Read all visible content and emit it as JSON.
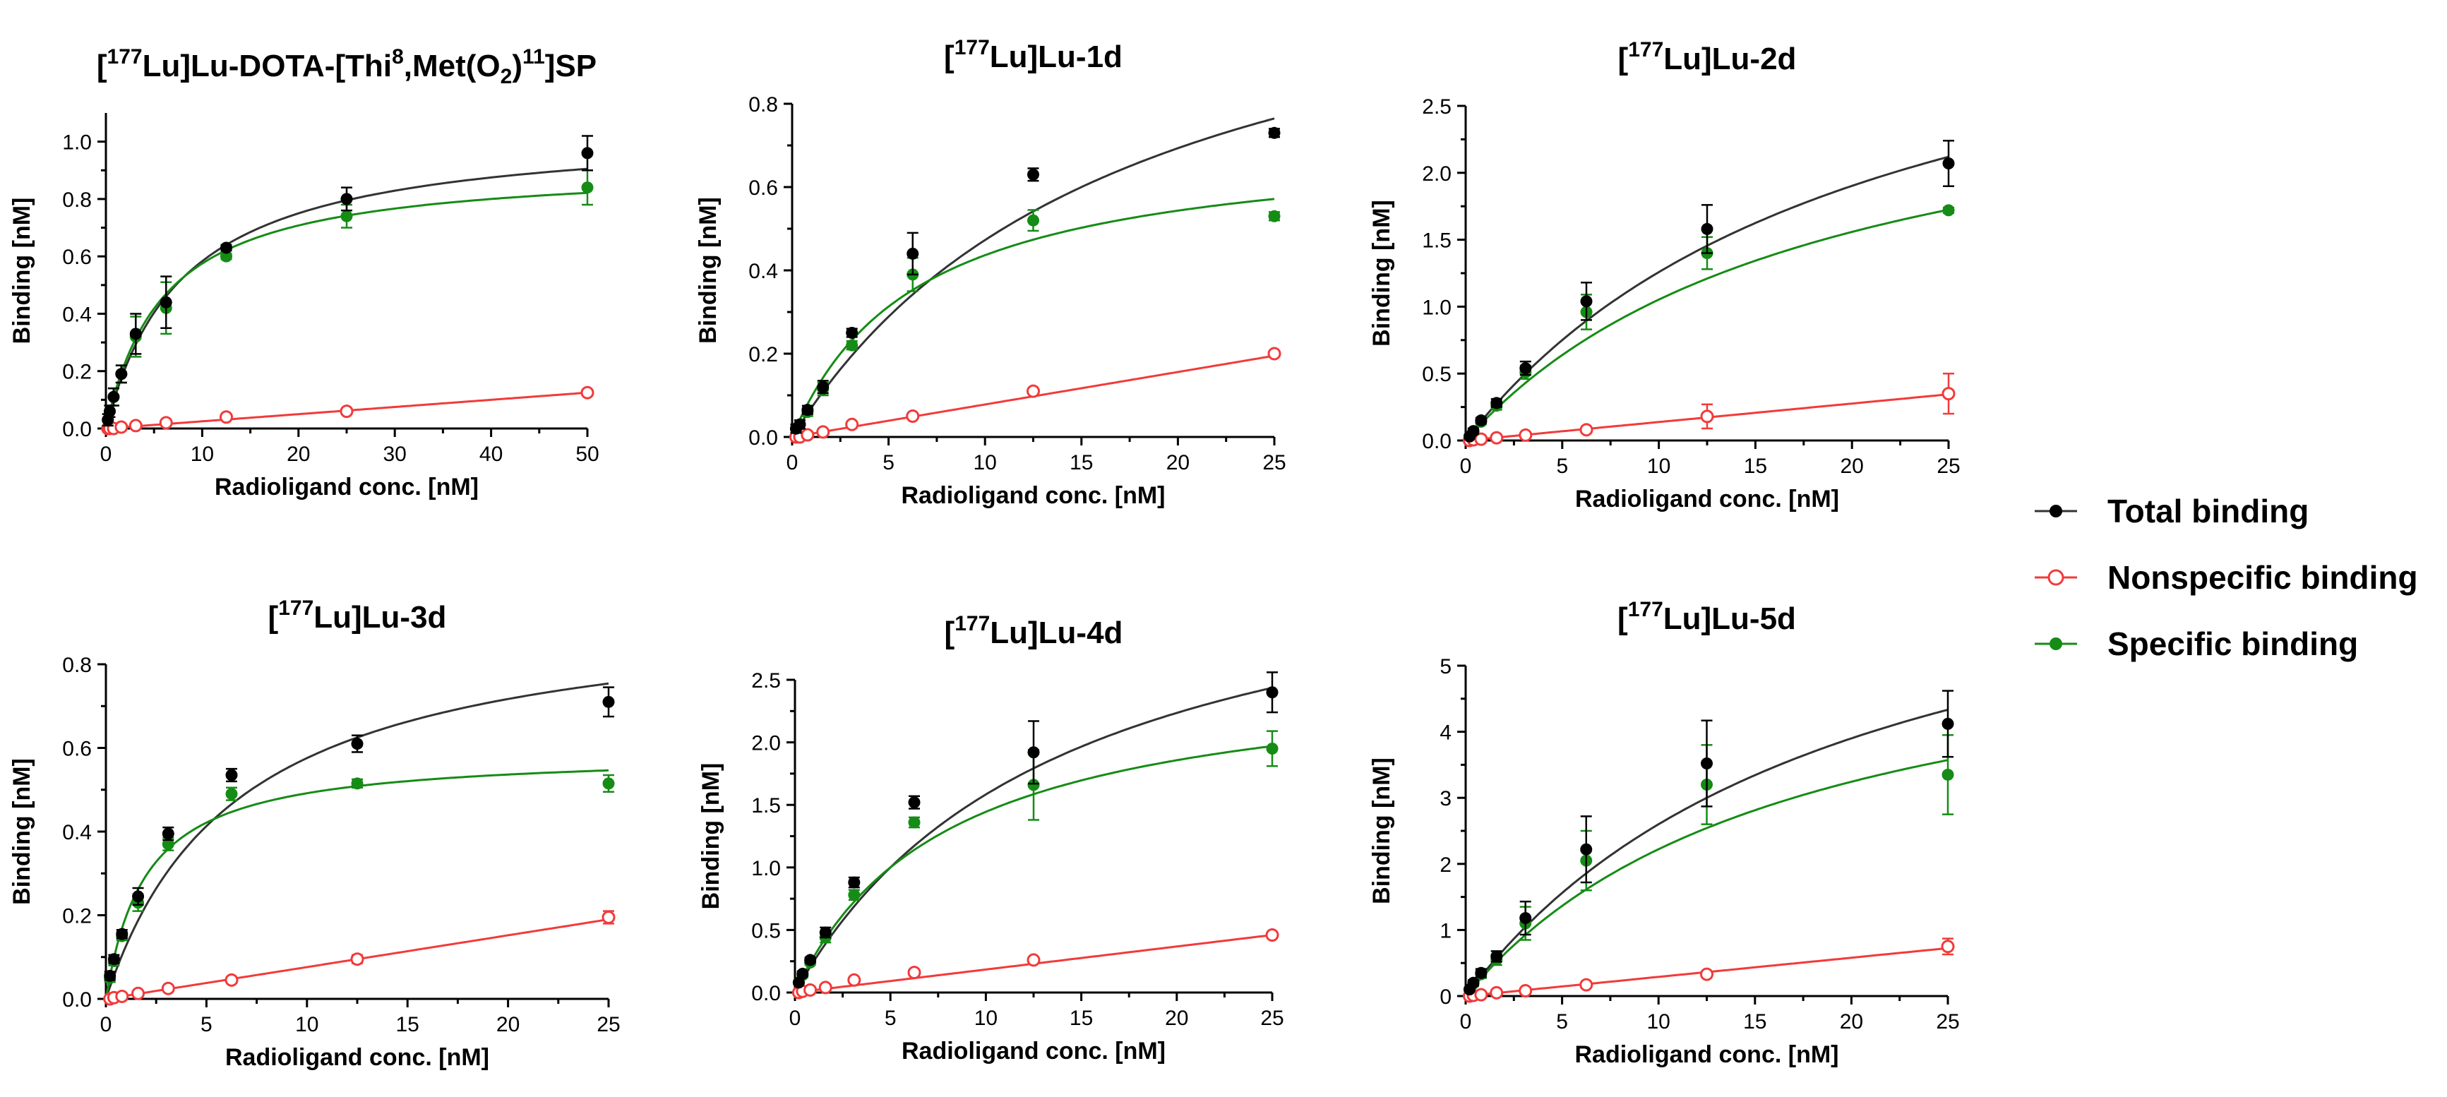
{
  "colors": {
    "total": "#000000",
    "total_fit": "#333333",
    "nonspecific": "#f23a3a",
    "specific": "#158c15"
  },
  "legend": {
    "items": [
      {
        "key": "total",
        "label": "Total binding"
      },
      {
        "key": "nonspecific",
        "label": "Nonspecific binding"
      },
      {
        "key": "specific",
        "label": "Specific binding"
      }
    ]
  },
  "chart_data": [
    {
      "type": "scatter",
      "title": "[177Lu]Lu-DOTA-[Thi8,Met(O2)11]SP",
      "title_parts": [
        {
          "t": "["
        },
        {
          "t": "177",
          "sup": true
        },
        {
          "t": "Lu]Lu-DOTA-[Thi"
        },
        {
          "t": "8",
          "sup": true
        },
        {
          "t": ",Met(O"
        },
        {
          "t": "2",
          "sub": true
        },
        {
          "t": ")"
        },
        {
          "t": "11",
          "sup": true
        },
        {
          "t": "]SP"
        }
      ],
      "xlabel": "Radioligand conc. [nM]",
      "ylabel": "Binding [nM]",
      "xlim": [
        0,
        50
      ],
      "ylim": [
        0,
        1.1
      ],
      "xticks": [
        0,
        10,
        20,
        30,
        40,
        50
      ],
      "yticks": [
        0.0,
        0.2,
        0.4,
        0.6,
        0.8,
        1.0
      ],
      "xtick_labels": [
        "0",
        "10",
        "20",
        "30",
        "40",
        "50"
      ],
      "ytick_labels": [
        "0.0",
        "0.2",
        "0.4",
        "0.6",
        "0.8",
        "1.0"
      ],
      "x": [
        0.2,
        0.4,
        0.8,
        1.6,
        3.1,
        6.25,
        12.5,
        25,
        50
      ],
      "series": [
        {
          "name": "Total binding",
          "key": "total",
          "values": [
            0.03,
            0.06,
            0.11,
            0.19,
            0.33,
            0.44,
            0.63,
            0.8,
            0.96
          ],
          "errors": [
            0.02,
            0.02,
            0.03,
            0.03,
            0.07,
            0.09,
            0.01,
            0.04,
            0.06
          ],
          "fit": {
            "Bmax": 1.05,
            "Kd": 8.0
          }
        },
        {
          "name": "Nonspecific binding",
          "key": "nonspecific",
          "values": [
            0.0,
            0.0,
            0.0,
            0.005,
            0.01,
            0.02,
            0.04,
            0.06,
            0.125
          ],
          "errors": [
            0,
            0,
            0,
            0,
            0,
            0.005,
            0.005,
            0.005,
            0.005
          ],
          "fit": {
            "slope": 0.0025
          }
        },
        {
          "name": "Specific binding",
          "key": "specific",
          "values": [
            0.03,
            0.06,
            0.11,
            0.19,
            0.32,
            0.42,
            0.6,
            0.74,
            0.84
          ],
          "errors": [
            0.02,
            0.02,
            0.03,
            0.03,
            0.07,
            0.09,
            0.01,
            0.04,
            0.06
          ],
          "fit": {
            "Bmax": 0.92,
            "Kd": 6.0
          }
        }
      ]
    },
    {
      "type": "scatter",
      "title": "[177Lu]Lu-1d",
      "title_parts": [
        {
          "t": "["
        },
        {
          "t": "177",
          "sup": true
        },
        {
          "t": "Lu]Lu-1d"
        }
      ],
      "xlabel": "Radioligand conc. [nM]",
      "ylabel": "Binding [nM]",
      "xlim": [
        0,
        25
      ],
      "ylim": [
        0,
        0.8
      ],
      "xticks": [
        0,
        5,
        10,
        15,
        20,
        25
      ],
      "yticks": [
        0.0,
        0.2,
        0.4,
        0.6,
        0.8
      ],
      "xtick_labels": [
        "0",
        "5",
        "10",
        "15",
        "20",
        "25"
      ],
      "ytick_labels": [
        "0.0",
        "0.2",
        "0.4",
        "0.6",
        "0.8"
      ],
      "x": [
        0.2,
        0.4,
        0.8,
        1.6,
        3.1,
        6.25,
        12.5,
        25
      ],
      "series": [
        {
          "name": "Total binding",
          "key": "total",
          "values": [
            0.02,
            0.03,
            0.065,
            0.12,
            0.25,
            0.44,
            0.63,
            0.73
          ],
          "errors": [
            0.01,
            0.01,
            0.01,
            0.015,
            0.01,
            0.05,
            0.015,
            0.01
          ],
          "fit": {
            "Bmax": 1.3,
            "Kd": 17.5
          }
        },
        {
          "name": "Nonspecific binding",
          "key": "nonspecific",
          "values": [
            0.0,
            0.0,
            0.005,
            0.012,
            0.03,
            0.05,
            0.11,
            0.2
          ],
          "errors": [
            0,
            0,
            0,
            0,
            0.003,
            0.003,
            0.005,
            0.005
          ],
          "fit": {
            "slope": 0.0078
          }
        },
        {
          "name": "Specific binding",
          "key": "specific",
          "values": [
            0.02,
            0.03,
            0.06,
            0.115,
            0.22,
            0.39,
            0.52,
            0.53
          ],
          "errors": [
            0.01,
            0.01,
            0.01,
            0.015,
            0.01,
            0.04,
            0.025,
            0.01
          ],
          "fit": {
            "Bmax": 0.72,
            "Kd": 6.5
          }
        }
      ]
    },
    {
      "type": "scatter",
      "title": "[177Lu]Lu-2d",
      "title_parts": [
        {
          "t": "["
        },
        {
          "t": "177",
          "sup": true
        },
        {
          "t": "Lu]Lu-2d"
        }
      ],
      "xlabel": "Radioligand conc. [nM]",
      "ylabel": "Binding [nM]",
      "xlim": [
        0,
        25
      ],
      "ylim": [
        0,
        2.5
      ],
      "xticks": [
        0,
        5,
        10,
        15,
        20,
        25
      ],
      "yticks": [
        0.0,
        0.5,
        1.0,
        1.5,
        2.0,
        2.5
      ],
      "xtick_labels": [
        "0",
        "5",
        "10",
        "15",
        "20",
        "25"
      ],
      "ytick_labels": [
        "0.0",
        "0.5",
        "1.0",
        "1.5",
        "2.0",
        "2.5"
      ],
      "x": [
        0.2,
        0.4,
        0.8,
        1.6,
        3.1,
        6.25,
        12.5,
        25
      ],
      "series": [
        {
          "name": "Total binding",
          "key": "total",
          "values": [
            0.03,
            0.07,
            0.15,
            0.28,
            0.54,
            1.04,
            1.58,
            2.07
          ],
          "errors": [
            0.01,
            0.02,
            0.02,
            0.03,
            0.05,
            0.14,
            0.18,
            0.17
          ],
          "fit": {
            "Bmax": 3.9,
            "Kd": 21.0
          }
        },
        {
          "name": "Nonspecific binding",
          "key": "nonspecific",
          "values": [
            0.0,
            0.005,
            0.01,
            0.02,
            0.04,
            0.08,
            0.18,
            0.35
          ],
          "errors": [
            0,
            0,
            0,
            0,
            0.01,
            0.01,
            0.09,
            0.15
          ],
          "fit": {
            "slope": 0.0138
          }
        },
        {
          "name": "Specific binding",
          "key": "specific",
          "values": [
            0.03,
            0.07,
            0.14,
            0.26,
            0.51,
            0.96,
            1.4,
            1.72
          ],
          "errors": [
            0.01,
            0.02,
            0.02,
            0.03,
            0.05,
            0.13,
            0.12,
            0.02
          ],
          "fit": {
            "Bmax": 3.0,
            "Kd": 18.5
          }
        }
      ]
    },
    {
      "type": "scatter",
      "title": "[177Lu]Lu-3d",
      "title_parts": [
        {
          "t": "["
        },
        {
          "t": "177",
          "sup": true
        },
        {
          "t": "Lu]Lu-3d"
        }
      ],
      "xlabel": "Radioligand conc. [nM]",
      "ylabel": "Binding [nM]",
      "xlim": [
        0,
        25
      ],
      "ylim": [
        0,
        0.8
      ],
      "xticks": [
        0,
        5,
        10,
        15,
        20,
        25
      ],
      "yticks": [
        0.0,
        0.2,
        0.4,
        0.6,
        0.8
      ],
      "xtick_labels": [
        "0",
        "5",
        "10",
        "15",
        "20",
        "25"
      ],
      "ytick_labels": [
        "0.0",
        "0.2",
        "0.4",
        "0.6",
        "0.8"
      ],
      "x": [
        0.2,
        0.4,
        0.8,
        1.6,
        3.1,
        6.25,
        12.5,
        25
      ],
      "series": [
        {
          "name": "Total binding",
          "key": "total",
          "values": [
            0.055,
            0.095,
            0.155,
            0.245,
            0.395,
            0.535,
            0.61,
            0.71
          ],
          "errors": [
            0.01,
            0.01,
            0.01,
            0.02,
            0.015,
            0.015,
            0.02,
            0.035
          ],
          "fit": {
            "Bmax": 0.95,
            "Kd": 6.5
          }
        },
        {
          "name": "Nonspecific binding",
          "key": "nonspecific",
          "values": [
            0.0,
            0.003,
            0.006,
            0.013,
            0.025,
            0.045,
            0.095,
            0.195
          ],
          "errors": [
            0,
            0,
            0,
            0,
            0,
            0.003,
            0.01,
            0.015
          ],
          "fit": {
            "slope": 0.0076
          }
        },
        {
          "name": "Specific binding",
          "key": "specific",
          "values": [
            0.05,
            0.09,
            0.15,
            0.23,
            0.37,
            0.49,
            0.515,
            0.515
          ],
          "errors": [
            0.01,
            0.01,
            0.01,
            0.02,
            0.015,
            0.015,
            0.01,
            0.02
          ],
          "fit": {
            "Bmax": 0.59,
            "Kd": 2.0
          }
        }
      ]
    },
    {
      "type": "scatter",
      "title": "[177Lu]Lu-4d",
      "title_parts": [
        {
          "t": "["
        },
        {
          "t": "177",
          "sup": true
        },
        {
          "t": "Lu]Lu-4d"
        }
      ],
      "xlabel": "Radioligand conc. [nM]",
      "ylabel": "Binding [nM]",
      "xlim": [
        0,
        25
      ],
      "ylim": [
        0,
        2.5
      ],
      "xticks": [
        0,
        5,
        10,
        15,
        20,
        25
      ],
      "yticks": [
        0.0,
        0.5,
        1.0,
        1.5,
        2.0,
        2.5
      ],
      "xtick_labels": [
        "0",
        "5",
        "10",
        "15",
        "20",
        "25"
      ],
      "ytick_labels": [
        "0.0",
        "0.5",
        "1.0",
        "1.5",
        "2.0",
        "2.5"
      ],
      "x": [
        0.2,
        0.4,
        0.8,
        1.6,
        3.1,
        6.25,
        12.5,
        25
      ],
      "series": [
        {
          "name": "Total binding",
          "key": "total",
          "values": [
            0.08,
            0.15,
            0.26,
            0.48,
            0.88,
            1.52,
            1.92,
            2.4
          ],
          "errors": [
            0.01,
            0.02,
            0.02,
            0.04,
            0.04,
            0.05,
            0.25,
            0.16
          ],
          "fit": {
            "Bmax": 3.8,
            "Kd": 14.0
          }
        },
        {
          "name": "Nonspecific binding",
          "key": "nonspecific",
          "values": [
            0.0,
            0.01,
            0.02,
            0.04,
            0.1,
            0.16,
            0.26,
            0.46
          ],
          "errors": [
            0,
            0,
            0,
            0,
            0.01,
            0.01,
            0.01,
            0.01
          ],
          "fit": {
            "slope": 0.0184
          }
        },
        {
          "name": "Specific binding",
          "key": "specific",
          "values": [
            0.08,
            0.14,
            0.24,
            0.44,
            0.78,
            1.36,
            1.66,
            1.95
          ],
          "errors": [
            0.01,
            0.02,
            0.02,
            0.04,
            0.04,
            0.04,
            0.28,
            0.14
          ],
          "fit": {
            "Bmax": 2.6,
            "Kd": 8.0
          }
        }
      ]
    },
    {
      "type": "scatter",
      "title": "[177Lu]Lu-5d",
      "title_parts": [
        {
          "t": "["
        },
        {
          "t": "177",
          "sup": true
        },
        {
          "t": "Lu]Lu-5d"
        }
      ],
      "xlabel": "Radioligand conc. [nM]",
      "ylabel": "Binding [nM]",
      "xlim": [
        0,
        25
      ],
      "ylim": [
        0,
        5
      ],
      "xticks": [
        0,
        5,
        10,
        15,
        20,
        25
      ],
      "yticks": [
        0,
        1,
        2,
        3,
        4,
        5
      ],
      "xtick_labels": [
        "0",
        "5",
        "10",
        "15",
        "20",
        "25"
      ],
      "ytick_labels": [
        "0",
        "1",
        "2",
        "3",
        "4",
        "5"
      ],
      "x": [
        0.2,
        0.4,
        0.8,
        1.6,
        3.1,
        6.25,
        12.5,
        25
      ],
      "series": [
        {
          "name": "Total binding",
          "key": "total",
          "values": [
            0.1,
            0.2,
            0.35,
            0.6,
            1.18,
            2.22,
            3.52,
            4.12
          ],
          "errors": [
            0.02,
            0.04,
            0.06,
            0.08,
            0.25,
            0.5,
            0.65,
            0.5
          ],
          "fit": {
            "Bmax": 7.8,
            "Kd": 20.0
          }
        },
        {
          "name": "Nonspecific binding",
          "key": "nonspecific",
          "values": [
            0.0,
            0.01,
            0.02,
            0.05,
            0.08,
            0.17,
            0.33,
            0.75
          ],
          "errors": [
            0,
            0,
            0,
            0,
            0.02,
            0.02,
            0.03,
            0.12
          ],
          "fit": {
            "slope": 0.029
          }
        },
        {
          "name": "Specific binding",
          "key": "specific",
          "values": [
            0.1,
            0.19,
            0.33,
            0.55,
            1.1,
            2.05,
            3.2,
            3.35
          ],
          "errors": [
            0.02,
            0.04,
            0.06,
            0.08,
            0.25,
            0.45,
            0.6,
            0.6
          ],
          "fit": {
            "Bmax": 6.0,
            "Kd": 17.0
          }
        }
      ]
    }
  ]
}
